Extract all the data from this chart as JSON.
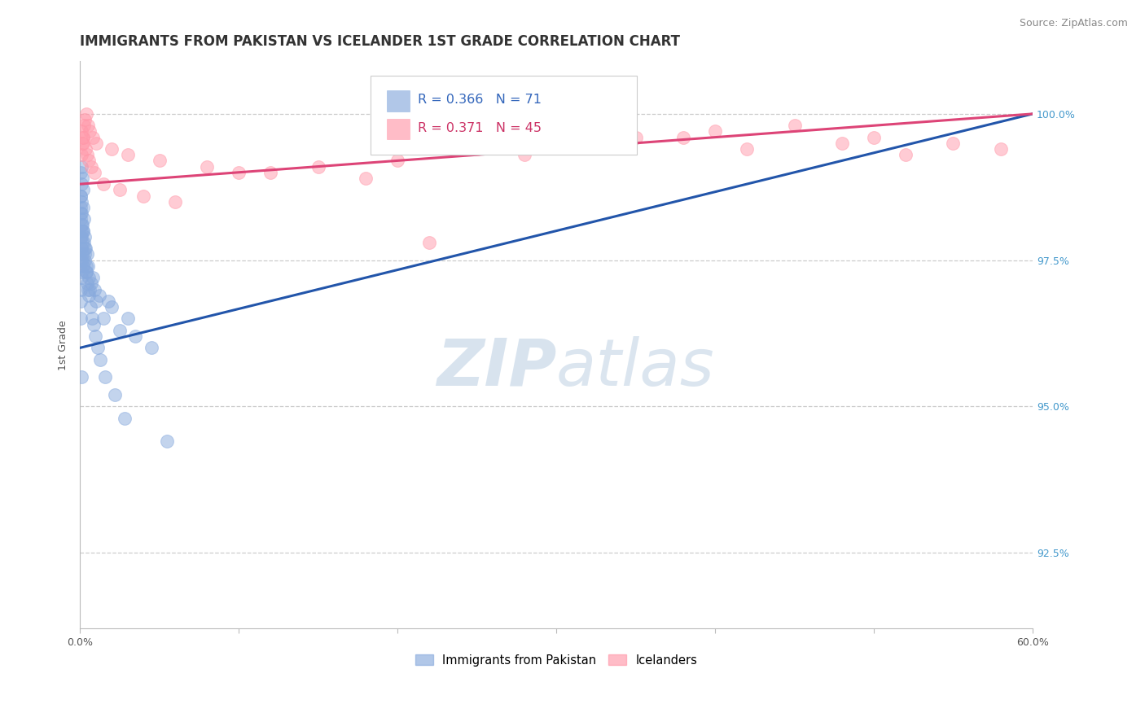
{
  "title": "IMMIGRANTS FROM PAKISTAN VS ICELANDER 1ST GRADE CORRELATION CHART",
  "source": "Source: ZipAtlas.com",
  "ylabel": "1st Grade",
  "yticks": [
    92.5,
    95.0,
    97.5,
    100.0
  ],
  "ytick_labels": [
    "92.5%",
    "95.0%",
    "97.5%",
    "100.0%"
  ],
  "xmin": 0.0,
  "xmax": 60.0,
  "ymin": 91.2,
  "ymax": 100.9,
  "blue_R": 0.366,
  "blue_N": 71,
  "pink_R": 0.371,
  "pink_N": 45,
  "blue_color": "#88AADD",
  "pink_color": "#FF99AA",
  "blue_line_color": "#2255AA",
  "pink_line_color": "#DD4477",
  "legend_label_blue": "Immigrants from Pakistan",
  "legend_label_pink": "Icelanders",
  "watermark_zip": "ZIP",
  "watermark_atlas": "atlas",
  "title_fontsize": 12,
  "axis_label_fontsize": 9,
  "tick_label_fontsize": 9,
  "blue_x": [
    0.05,
    0.05,
    0.05,
    0.05,
    0.05,
    0.08,
    0.08,
    0.1,
    0.1,
    0.1,
    0.1,
    0.12,
    0.12,
    0.15,
    0.15,
    0.15,
    0.18,
    0.2,
    0.2,
    0.2,
    0.25,
    0.25,
    0.3,
    0.3,
    0.35,
    0.4,
    0.45,
    0.5,
    0.55,
    0.6,
    0.7,
    0.8,
    0.9,
    1.0,
    1.2,
    1.5,
    1.8,
    2.0,
    2.5,
    3.0,
    3.5,
    4.5,
    0.06,
    0.07,
    0.09,
    0.11,
    0.13,
    0.16,
    0.22,
    0.28,
    0.32,
    0.38,
    0.42,
    0.48,
    0.52,
    0.58,
    0.65,
    0.75,
    0.85,
    0.95,
    1.1,
    1.3,
    1.6,
    2.2,
    2.8,
    0.04,
    0.04,
    0.06,
    0.07,
    0.09,
    5.5
  ],
  "blue_y": [
    99.0,
    98.6,
    98.2,
    97.9,
    97.5,
    99.1,
    98.0,
    98.8,
    98.3,
    97.7,
    97.2,
    98.5,
    97.3,
    98.9,
    98.1,
    97.6,
    98.4,
    98.7,
    98.0,
    97.4,
    98.2,
    97.8,
    97.9,
    97.5,
    97.7,
    97.3,
    97.6,
    97.4,
    97.2,
    97.0,
    97.1,
    97.2,
    97.0,
    96.8,
    96.9,
    96.5,
    96.8,
    96.7,
    96.3,
    96.5,
    96.2,
    96.0,
    98.6,
    98.4,
    98.1,
    97.9,
    97.8,
    97.5,
    98.0,
    97.7,
    97.6,
    97.4,
    97.3,
    97.1,
    97.0,
    96.9,
    96.7,
    96.5,
    96.4,
    96.2,
    96.0,
    95.8,
    95.5,
    95.2,
    94.8,
    98.3,
    97.0,
    96.8,
    96.5,
    95.5,
    94.4
  ],
  "pink_x": [
    0.1,
    0.15,
    0.2,
    0.25,
    0.3,
    0.4,
    0.5,
    0.6,
    0.8,
    1.0,
    2.0,
    3.0,
    5.0,
    8.0,
    12.0,
    18.0,
    25.0,
    30.0,
    35.0,
    40.0,
    45.0,
    50.0,
    55.0,
    58.0,
    0.12,
    0.18,
    0.22,
    0.35,
    0.45,
    0.55,
    0.7,
    0.9,
    1.5,
    2.5,
    4.0,
    6.0,
    10.0,
    15.0,
    20.0,
    28.0,
    42.0,
    48.0,
    52.0,
    22.0,
    38.0
  ],
  "pink_y": [
    99.3,
    99.5,
    99.6,
    99.8,
    99.9,
    100.0,
    99.8,
    99.7,
    99.6,
    99.5,
    99.4,
    99.3,
    99.2,
    99.1,
    99.0,
    98.9,
    99.4,
    99.5,
    99.6,
    99.7,
    99.8,
    99.6,
    99.5,
    99.4,
    99.7,
    99.6,
    99.5,
    99.4,
    99.3,
    99.2,
    99.1,
    99.0,
    98.8,
    98.7,
    98.6,
    98.5,
    99.0,
    99.1,
    99.2,
    99.3,
    99.4,
    99.5,
    99.3,
    97.8,
    99.6
  ],
  "blue_trend_x0": 0.0,
  "blue_trend_y0": 96.0,
  "blue_trend_x1": 60.0,
  "blue_trend_y1": 100.0,
  "pink_trend_x0": 0.0,
  "pink_trend_y0": 98.8,
  "pink_trend_x1": 60.0,
  "pink_trend_y1": 100.0
}
